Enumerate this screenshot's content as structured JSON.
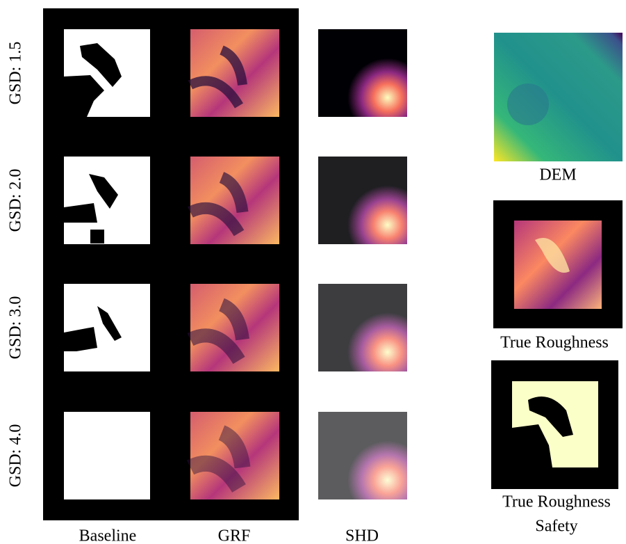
{
  "rows": [
    {
      "label": "GSD: 1.5"
    },
    {
      "label": "GSD: 2.0"
    },
    {
      "label": "GSD: 3.0"
    },
    {
      "label": "GSD: 4.0"
    }
  ],
  "columns": [
    "Baseline",
    "GRF",
    "SHD"
  ],
  "side": {
    "dem": "DEM",
    "roughness": "True Roughness",
    "safety_line1": "True Roughness",
    "safety_line2": "Safety"
  }
}
